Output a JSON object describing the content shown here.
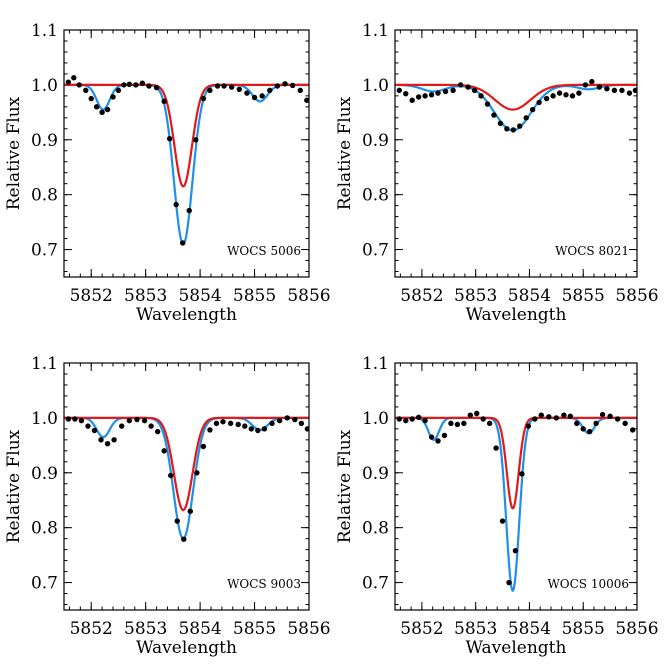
{
  "chart_data": [
    {
      "type": "line",
      "title": "",
      "xlabel": "Wavelength",
      "ylabel": "Relative Flux",
      "annotation": "WOCS 5006",
      "xlim": [
        5851.5,
        5856.0
      ],
      "ylim": [
        0.65,
        1.1
      ],
      "xticks": [
        5852,
        5853,
        5854,
        5855,
        5856
      ],
      "yticks": [
        0.7,
        0.8,
        0.9,
        1.0,
        1.1
      ],
      "ytick_labels": [
        "0.7",
        "0.8",
        "0.9",
        "1.0",
        "1.1"
      ],
      "colors": {
        "red_model": "#e0191b",
        "blue_model": "#1f8fe8",
        "observed": "#000000"
      },
      "models": {
        "red": {
          "centers": [
            5853.69
          ],
          "depths": [
            0.185
          ],
          "sigmas": [
            0.16
          ]
        },
        "blue": {
          "centers": [
            5852.22,
            5853.69,
            5855.1
          ],
          "depths": [
            0.045,
            0.29,
            0.03
          ],
          "sigmas": [
            0.12,
            0.17,
            0.14
          ]
        }
      },
      "observed": [
        [
          5851.58,
          1.005
        ],
        [
          5851.68,
          1.013
        ],
        [
          5851.78,
          1.0
        ],
        [
          5851.9,
          0.99
        ],
        [
          5852.0,
          0.975
        ],
        [
          5852.1,
          0.96
        ],
        [
          5852.2,
          0.95
        ],
        [
          5852.3,
          0.955
        ],
        [
          5852.4,
          0.978
        ],
        [
          5852.5,
          0.99
        ],
        [
          5852.6,
          1.0
        ],
        [
          5852.7,
          1.001
        ],
        [
          5852.82,
          1.0
        ],
        [
          5852.94,
          1.003
        ],
        [
          5853.06,
          0.998
        ],
        [
          5853.2,
          0.995
        ],
        [
          5853.34,
          0.97
        ],
        [
          5853.44,
          0.902
        ],
        [
          5853.56,
          0.782
        ],
        [
          5853.68,
          0.712
        ],
        [
          5853.8,
          0.771
        ],
        [
          5853.92,
          0.9
        ],
        [
          5854.06,
          0.975
        ],
        [
          5854.18,
          0.99
        ],
        [
          5854.32,
          0.998
        ],
        [
          5854.44,
          0.998
        ],
        [
          5854.58,
          0.996
        ],
        [
          5854.72,
          0.992
        ],
        [
          5854.86,
          0.985
        ],
        [
          5855.0,
          0.977
        ],
        [
          5855.14,
          0.98
        ],
        [
          5855.28,
          0.99
        ],
        [
          5855.42,
          0.998
        ],
        [
          5855.56,
          1.002
        ],
        [
          5855.7,
          0.999
        ],
        [
          5855.84,
          0.99
        ],
        [
          5855.96,
          0.972
        ]
      ]
    },
    {
      "type": "line",
      "title": "",
      "xlabel": "Wavelength",
      "ylabel": "Relative Flux",
      "annotation": "WOCS 8021",
      "xlim": [
        5851.5,
        5856.0
      ],
      "ylim": [
        0.65,
        1.1
      ],
      "xticks": [
        5852,
        5853,
        5854,
        5855,
        5856
      ],
      "yticks": [
        0.7,
        0.8,
        0.9,
        1.0,
        1.1
      ],
      "ytick_labels": [
        "0.7",
        "0.8",
        "0.9",
        "1.0",
        "1.1"
      ],
      "colors": {
        "red_model": "#e0191b",
        "blue_model": "#1f8fe8",
        "observed": "#000000"
      },
      "models": {
        "red": {
          "centers": [
            5853.69
          ],
          "depths": [
            0.045
          ],
          "sigmas": [
            0.33
          ]
        },
        "blue": {
          "centers": [
            5852.22,
            5853.69,
            5855.1
          ],
          "depths": [
            0.012,
            0.083,
            0.008
          ],
          "sigmas": [
            0.22,
            0.34,
            0.2
          ]
        }
      },
      "observed": [
        [
          5851.58,
          0.99
        ],
        [
          5851.7,
          0.984
        ],
        [
          5851.82,
          0.972
        ],
        [
          5851.94,
          0.978
        ],
        [
          5852.06,
          0.98
        ],
        [
          5852.18,
          0.982
        ],
        [
          5852.3,
          0.985
        ],
        [
          5852.44,
          0.988
        ],
        [
          5852.58,
          0.99
        ],
        [
          5852.72,
          1.0
        ],
        [
          5852.86,
          0.996
        ],
        [
          5852.98,
          0.99
        ],
        [
          5853.1,
          0.98
        ],
        [
          5853.22,
          0.965
        ],
        [
          5853.34,
          0.945
        ],
        [
          5853.46,
          0.93
        ],
        [
          5853.58,
          0.92
        ],
        [
          5853.7,
          0.918
        ],
        [
          5853.82,
          0.925
        ],
        [
          5853.94,
          0.94
        ],
        [
          5854.06,
          0.955
        ],
        [
          5854.18,
          0.968
        ],
        [
          5854.32,
          0.975
        ],
        [
          5854.44,
          0.98
        ],
        [
          5854.56,
          0.985
        ],
        [
          5854.68,
          0.982
        ],
        [
          5854.8,
          0.98
        ],
        [
          5854.92,
          0.985
        ],
        [
          5855.04,
          1.0
        ],
        [
          5855.16,
          1.006
        ],
        [
          5855.3,
          0.996
        ],
        [
          5855.44,
          0.993
        ],
        [
          5855.58,
          0.99
        ],
        [
          5855.72,
          0.99
        ],
        [
          5855.86,
          0.985
        ],
        [
          5855.97,
          0.99
        ]
      ]
    },
    {
      "type": "line",
      "title": "",
      "xlabel": "Wavelength",
      "ylabel": "Relative Flux",
      "annotation": "WOCS 9003",
      "xlim": [
        5851.5,
        5856.0
      ],
      "ylim": [
        0.65,
        1.1
      ],
      "xticks": [
        5852,
        5853,
        5854,
        5855,
        5856
      ],
      "yticks": [
        0.7,
        0.8,
        0.9,
        1.0,
        1.1
      ],
      "ytick_labels": [
        "0.7",
        "0.8",
        "0.9",
        "1.0",
        "1.1"
      ],
      "colors": {
        "red_model": "#e0191b",
        "blue_model": "#1f8fe8",
        "observed": "#000000"
      },
      "models": {
        "red": {
          "centers": [
            5853.69
          ],
          "depths": [
            0.168
          ],
          "sigmas": [
            0.17
          ]
        },
        "blue": {
          "centers": [
            5852.22,
            5853.69,
            5855.1
          ],
          "depths": [
            0.035,
            0.22,
            0.022
          ],
          "sigmas": [
            0.12,
            0.18,
            0.14
          ]
        }
      },
      "observed": [
        [
          5851.58,
          0.998
        ],
        [
          5851.7,
          0.998
        ],
        [
          5851.82,
          0.995
        ],
        [
          5851.94,
          0.985
        ],
        [
          5852.06,
          0.977
        ],
        [
          5852.18,
          0.96
        ],
        [
          5852.3,
          0.953
        ],
        [
          5852.42,
          0.96
        ],
        [
          5852.56,
          0.985
        ],
        [
          5852.7,
          0.995
        ],
        [
          5852.84,
          0.997
        ],
        [
          5852.98,
          0.995
        ],
        [
          5853.1,
          0.985
        ],
        [
          5853.22,
          0.975
        ],
        [
          5853.34,
          0.94
        ],
        [
          5853.46,
          0.895
        ],
        [
          5853.58,
          0.812
        ],
        [
          5853.7,
          0.779
        ],
        [
          5853.82,
          0.83
        ],
        [
          5853.94,
          0.9
        ],
        [
          5854.06,
          0.948
        ],
        [
          5854.18,
          0.978
        ],
        [
          5854.3,
          0.99
        ],
        [
          5854.42,
          0.993
        ],
        [
          5854.56,
          0.99
        ],
        [
          5854.7,
          0.988
        ],
        [
          5854.82,
          0.985
        ],
        [
          5854.94,
          0.98
        ],
        [
          5855.06,
          0.977
        ],
        [
          5855.18,
          0.98
        ],
        [
          5855.32,
          0.99
        ],
        [
          5855.46,
          0.995
        ],
        [
          5855.6,
          1.0
        ],
        [
          5855.74,
          0.997
        ],
        [
          5855.86,
          0.99
        ],
        [
          5855.97,
          0.98
        ]
      ]
    },
    {
      "type": "line",
      "title": "",
      "xlabel": "Wavelength",
      "ylabel": "Relative Flux",
      "annotation": "WOCS 10006",
      "xlim": [
        5851.5,
        5856.0
      ],
      "ylim": [
        0.65,
        1.1
      ],
      "xticks": [
        5852,
        5853,
        5854,
        5855,
        5856
      ],
      "yticks": [
        0.7,
        0.8,
        0.9,
        1.0,
        1.1
      ],
      "ytick_labels": [
        "0.7",
        "0.8",
        "0.9",
        "1.0",
        "1.1"
      ],
      "colors": {
        "red_model": "#e0191b",
        "blue_model": "#1f8fe8",
        "observed": "#000000"
      },
      "models": {
        "red": {
          "centers": [
            5853.69
          ],
          "depths": [
            0.165
          ],
          "sigmas": [
            0.11
          ]
        },
        "blue": {
          "centers": [
            5852.22,
            5853.69,
            5855.1
          ],
          "depths": [
            0.04,
            0.315,
            0.028
          ],
          "sigmas": [
            0.1,
            0.12,
            0.11
          ]
        }
      },
      "observed": [
        [
          5851.58,
          0.998
        ],
        [
          5851.7,
          0.995
        ],
        [
          5851.82,
          0.998
        ],
        [
          5851.94,
          1.001
        ],
        [
          5852.06,
          0.995
        ],
        [
          5852.18,
          0.965
        ],
        [
          5852.3,
          0.958
        ],
        [
          5852.42,
          0.968
        ],
        [
          5852.54,
          0.99
        ],
        [
          5852.66,
          0.988
        ],
        [
          5852.78,
          0.99
        ],
        [
          5852.9,
          1.005
        ],
        [
          5853.02,
          1.008
        ],
        [
          5853.14,
          0.998
        ],
        [
          5853.26,
          0.99
        ],
        [
          5853.38,
          0.945
        ],
        [
          5853.5,
          0.812
        ],
        [
          5853.62,
          0.7
        ],
        [
          5853.74,
          0.758
        ],
        [
          5853.86,
          0.898
        ],
        [
          5853.98,
          0.985
        ],
        [
          5854.1,
          0.998
        ],
        [
          5854.22,
          1.005
        ],
        [
          5854.36,
          1.002
        ],
        [
          5854.5,
          1.0
        ],
        [
          5854.64,
          1.005
        ],
        [
          5854.76,
          1.003
        ],
        [
          5854.88,
          0.99
        ],
        [
          5855.0,
          0.98
        ],
        [
          5855.12,
          0.975
        ],
        [
          5855.24,
          0.99
        ],
        [
          5855.36,
          1.006
        ],
        [
          5855.5,
          1.003
        ],
        [
          5855.64,
          0.998
        ],
        [
          5855.78,
          0.99
        ],
        [
          5855.92,
          0.978
        ]
      ]
    }
  ]
}
